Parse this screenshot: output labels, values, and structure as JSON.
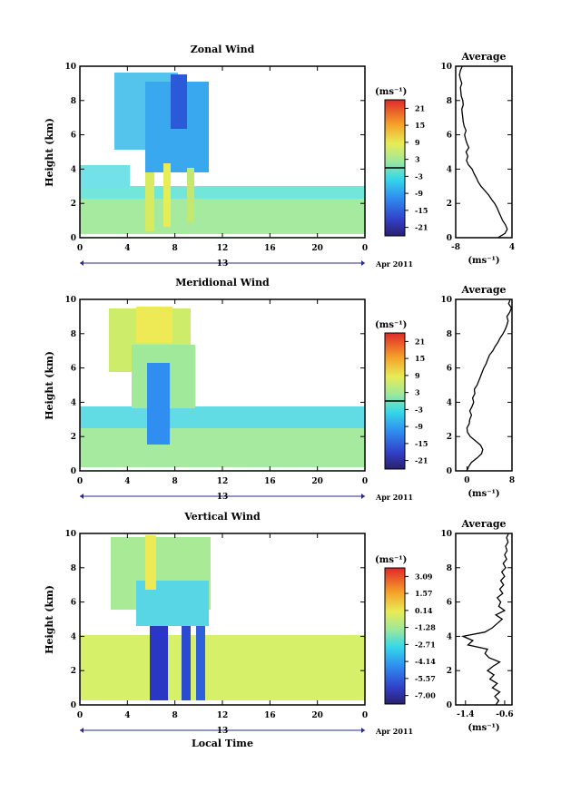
{
  "chart_data": [
    {
      "type": "heatmap",
      "title": "Zonal Wind",
      "xlabel": "",
      "ylabel": "Height (km)",
      "xlim": [
        0,
        24
      ],
      "ylim": [
        0,
        10
      ],
      "x_ticks": [
        "0",
        "4",
        "8",
        "12",
        "16",
        "20",
        "0"
      ],
      "y_ticks": [
        "0",
        "2",
        "4",
        "6",
        "8",
        "10"
      ],
      "date_label": "13",
      "date_suffix": "Apr 2011",
      "colorbar": {
        "unit": "(ms⁻¹)",
        "ticks": [
          "21",
          "15",
          "9",
          "3",
          "-3",
          "-9",
          "-15",
          "-21"
        ],
        "range": [
          -24,
          24
        ],
        "zero_line": 0
      }
    },
    {
      "type": "line",
      "title": "Average",
      "xlabel": "(ms⁻¹)",
      "xlim": [
        -8,
        4
      ],
      "ylim": [
        0,
        10
      ],
      "x_ticks": [
        "-8",
        "4"
      ],
      "y_ticks": [
        "0",
        "2",
        "4",
        "6",
        "8",
        "10"
      ],
      "x": [
        1.0,
        2.5,
        3.0,
        2.6,
        2.0,
        1.6,
        1.2,
        0.8,
        0.3,
        -0.4,
        -1.0,
        -1.8,
        -2.6,
        -3.2,
        -3.6,
        -4.1,
        -4.5,
        -5.3,
        -5.7,
        -5.4,
        -5.8,
        -5.2,
        -5.6,
        -5.9,
        -6.1,
        -5.8,
        -6.2,
        -6.4,
        -6.5,
        -6.6,
        -6.7,
        -6.4,
        -6.5,
        -6.8,
        -6.9,
        -7.0,
        -6.7,
        -7.0,
        -7.2,
        -7.0,
        -6.6
      ],
      "y": [
        0.0,
        0.25,
        0.5,
        0.75,
        1.0,
        1.25,
        1.5,
        1.75,
        2.0,
        2.25,
        2.5,
        2.75,
        3.0,
        3.25,
        3.5,
        3.75,
        4.0,
        4.25,
        4.5,
        4.75,
        5.0,
        5.25,
        5.5,
        5.75,
        6.0,
        6.25,
        6.5,
        6.75,
        7.0,
        7.25,
        7.5,
        7.75,
        8.0,
        8.25,
        8.5,
        8.75,
        9.0,
        9.25,
        9.5,
        9.75,
        10.0
      ]
    },
    {
      "type": "heatmap",
      "title": "Meridional Wind",
      "xlabel": "",
      "ylabel": "Height (km)",
      "xlim": [
        0,
        24
      ],
      "ylim": [
        0,
        10
      ],
      "x_ticks": [
        "0",
        "4",
        "8",
        "12",
        "16",
        "20",
        "0"
      ],
      "y_ticks": [
        "0",
        "2",
        "4",
        "6",
        "8",
        "10"
      ],
      "date_label": "13",
      "date_suffix": "Apr 2011",
      "colorbar": {
        "unit": "(ms⁻¹)",
        "ticks": [
          "21",
          "15",
          "9",
          "3",
          "-3",
          "-9",
          "-15",
          "-21"
        ],
        "range": [
          -24,
          24
        ],
        "zero_line": 0
      }
    },
    {
      "type": "line",
      "title": "Average",
      "xlabel": "(ms⁻¹)",
      "xlim": [
        -2,
        8
      ],
      "ylim": [
        0,
        10
      ],
      "x_ticks": [
        "0",
        "8"
      ],
      "y_ticks": [
        "0",
        "2",
        "4",
        "6",
        "8",
        "10"
      ],
      "x": [
        0.0,
        0.3,
        0.8,
        1.8,
        2.6,
        2.8,
        2.4,
        1.5,
        0.6,
        0.1,
        0.0,
        0.4,
        0.5,
        0.8,
        0.5,
        0.9,
        1.2,
        1.0,
        1.4,
        1.3,
        1.8,
        2.1,
        2.4,
        2.7,
        3.0,
        3.4,
        3.7,
        4.0,
        4.6,
        5.0,
        5.5,
        5.9,
        6.4,
        6.8,
        7.1,
        7.3,
        7.1,
        7.6,
        7.9,
        7.4,
        7.7
      ],
      "y": [
        0.0,
        0.25,
        0.5,
        0.75,
        1.0,
        1.25,
        1.5,
        1.75,
        2.0,
        2.25,
        2.5,
        2.75,
        3.0,
        3.25,
        3.5,
        3.75,
        4.0,
        4.25,
        4.5,
        4.75,
        5.0,
        5.25,
        5.5,
        5.75,
        6.0,
        6.25,
        6.5,
        6.75,
        7.0,
        7.25,
        7.5,
        7.75,
        8.0,
        8.25,
        8.5,
        8.75,
        9.0,
        9.25,
        9.5,
        9.75,
        10.0
      ]
    },
    {
      "type": "heatmap",
      "title": "Vertical Wind",
      "xlabel": "Local Time",
      "ylabel": "Height (km)",
      "xlim": [
        0,
        24
      ],
      "ylim": [
        0,
        10
      ],
      "x_ticks": [
        "0",
        "4",
        "8",
        "12",
        "16",
        "20",
        "0"
      ],
      "y_ticks": [
        "0",
        "2",
        "4",
        "6",
        "8",
        "10"
      ],
      "date_label": "13",
      "date_suffix": "Apr 2011",
      "colorbar": {
        "unit": "(ms⁻¹)",
        "ticks": [
          "3.09",
          "1.57",
          "0.14",
          "-1.28",
          "-2.71",
          "-4.14",
          "-5.57",
          "-7.00"
        ],
        "range": [
          -7.7,
          3.8
        ]
      }
    },
    {
      "type": "line",
      "title": "Average",
      "xlabel": "(ms⁻¹)",
      "xlim": [
        -1.6,
        -0.45
      ],
      "ylim": [
        0,
        10
      ],
      "x_ticks": [
        "-1.4",
        "-0.6"
      ],
      "y_ticks": [
        "0",
        "2",
        "4",
        "6",
        "8",
        "10"
      ],
      "x": [
        -0.78,
        -0.72,
        -0.8,
        -0.7,
        -0.85,
        -0.75,
        -0.9,
        -0.82,
        -0.95,
        -0.84,
        -0.7,
        -0.92,
        -1.0,
        -0.95,
        -1.35,
        -1.25,
        -1.45,
        -1.0,
        -0.85,
        -0.75,
        -0.65,
        -0.78,
        -0.6,
        -0.72,
        -0.68,
        -0.75,
        -0.64,
        -0.7,
        -0.62,
        -0.68,
        -0.6,
        -0.66,
        -0.58,
        -0.63,
        -0.56,
        -0.6,
        -0.55,
        -0.58,
        -0.53,
        -0.56,
        -0.52
      ],
      "y": [
        0.0,
        0.25,
        0.5,
        0.75,
        1.0,
        1.25,
        1.5,
        1.75,
        2.0,
        2.25,
        2.5,
        2.75,
        3.0,
        3.25,
        3.5,
        3.75,
        4.0,
        4.25,
        4.5,
        4.75,
        5.0,
        5.25,
        5.5,
        5.75,
        6.0,
        6.25,
        6.5,
        6.75,
        7.0,
        7.25,
        7.5,
        7.75,
        8.0,
        8.25,
        8.5,
        8.75,
        9.0,
        9.25,
        9.5,
        9.75,
        10.0
      ]
    }
  ]
}
